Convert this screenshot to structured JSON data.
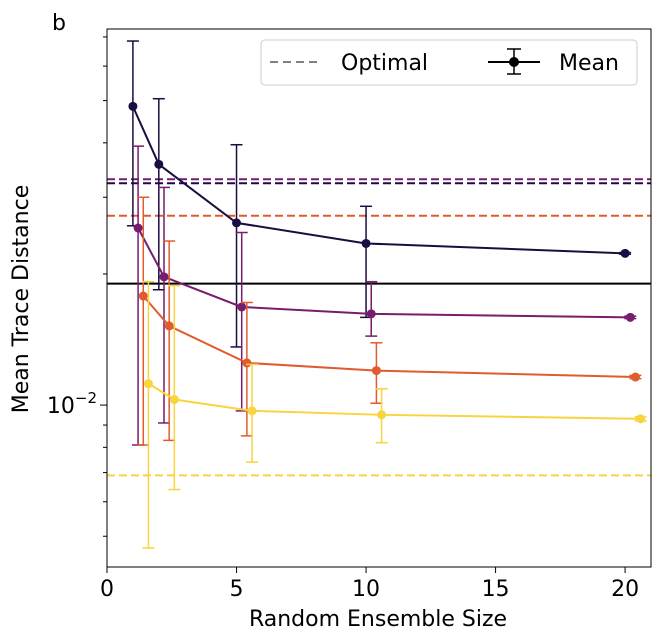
{
  "chart_data": {
    "type": "line",
    "panel_label": "b",
    "xlabel": "Random Ensemble Size",
    "ylabel": "Mean Trace Distance",
    "yscale": "log",
    "xlim": [
      0,
      21
    ],
    "ylim": [
      0.00425,
      0.073
    ],
    "x_ticks": [
      0,
      5,
      10,
      15,
      20
    ],
    "x_tick_labels": [
      "0",
      "5",
      "10",
      "15",
      "20"
    ],
    "y_tick_label": {
      "base": "10",
      "exponent": "−2",
      "value": 0.01
    },
    "legend": {
      "position": "top-right",
      "entries": [
        {
          "label": "Optimal",
          "style": "dashed",
          "color": "#808080"
        },
        {
          "label": "Mean",
          "style": "line-marker-errorbar",
          "color": "#000000"
        }
      ]
    },
    "reference_lines": [
      {
        "label": "Mean",
        "style": "solid",
        "color": "#000000",
        "value": 0.019
      },
      {
        "label": "Optimal",
        "style": "dashed",
        "color": "#1b0c41",
        "value": 0.0323
      },
      {
        "label": "Optimal",
        "style": "dashed",
        "color": "#781c6d",
        "value": 0.033
      },
      {
        "label": "Optimal",
        "style": "dashed",
        "color": "#e05c2e",
        "value": 0.0272
      },
      {
        "label": "Optimal",
        "style": "dashed",
        "color": "#f8d43f",
        "value": 0.0069
      }
    ],
    "series": [
      {
        "name": "series-1",
        "color": "#1b0c41",
        "x": [
          1.0,
          2.0,
          5.0,
          10.0,
          20.0
        ],
        "y": [
          0.0485,
          0.0357,
          0.0262,
          0.0235,
          0.0223
        ],
        "err_low": [
          0.0258,
          0.0184,
          0.0136,
          0.0159,
          0.0222
        ],
        "err_high": [
          0.0685,
          0.0505,
          0.0396,
          0.0286,
          0.0224
        ]
      },
      {
        "name": "series-2",
        "color": "#781c6d",
        "x": [
          1.2,
          2.2,
          5.2,
          10.2,
          20.2
        ],
        "y": [
          0.0255,
          0.0197,
          0.0168,
          0.0162,
          0.0159
        ],
        "err_low": [
          0.0081,
          0.0091,
          0.0097,
          0.0144,
          0.0158
        ],
        "err_high": [
          0.0393,
          0.0316,
          0.0249,
          0.0192,
          0.016
        ]
      },
      {
        "name": "series-3",
        "color": "#e05c2e",
        "x": [
          1.4,
          2.4,
          5.4,
          10.4,
          20.4
        ],
        "y": [
          0.0178,
          0.0152,
          0.0125,
          0.012,
          0.0116
        ],
        "err_low": [
          0.0081,
          0.0083,
          0.0085,
          0.0101,
          0.0115
        ],
        "err_high": [
          0.03,
          0.0238,
          0.0172,
          0.0139,
          0.0117
        ]
      },
      {
        "name": "series-4",
        "color": "#f8d43f",
        "x": [
          1.6,
          2.6,
          5.6,
          10.6,
          20.6
        ],
        "y": [
          0.0112,
          0.0103,
          0.0097,
          0.0095,
          0.0093
        ],
        "err_low": [
          0.0047,
          0.0064,
          0.0074,
          0.0082,
          0.0092
        ],
        "err_high": [
          0.0192,
          0.0188,
          0.0124,
          0.0109,
          0.0094
        ]
      }
    ]
  }
}
